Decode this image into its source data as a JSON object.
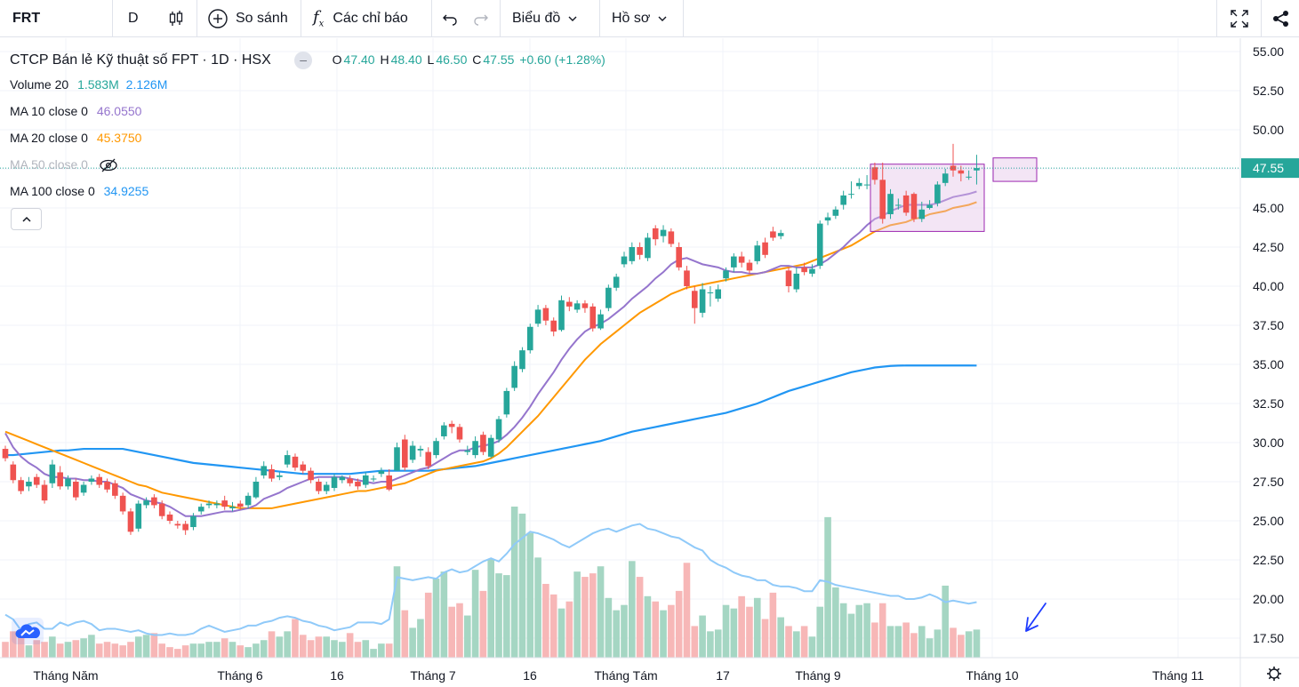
{
  "toolbar": {
    "symbol": "FRT",
    "interval": "D",
    "compare_label": "So sánh",
    "indicators_label": "Các chỉ báo",
    "chart_type_label": "Biểu đồ",
    "profile_label": "Hồ sơ"
  },
  "legend": {
    "title": "CTCP Bán lẻ Kỹ thuật số FPT · 1D · HSX",
    "open_label": "O",
    "open": "47.40",
    "high_label": "H",
    "high": "48.40",
    "low_label": "L",
    "low": "46.50",
    "close_label": "C",
    "close": "47.55",
    "change": "+0.60 (+1.28%)",
    "volume_label": "Volume 20",
    "volume_value": "1.583M",
    "volume_ma": "2.126M",
    "ma10_label": "MA 10 close 0",
    "ma10_value": "46.0550",
    "ma20_label": "MA 20 close 0",
    "ma20_value": "45.3750",
    "ma50_label": "MA 50 close 0",
    "ma100_label": "MA 100 close 0",
    "ma100_value": "34.9255"
  },
  "colors": {
    "up": "#26a69a",
    "down": "#ef5350",
    "ma10": "#9575cd",
    "ma20": "#ff9800",
    "ma100": "#2196f3",
    "vol_ma": "#90caf9",
    "vol_up": "#a5d6c3",
    "vol_down": "#f7b7b7",
    "last_price": "#26a69a"
  },
  "chart_data": {
    "type": "candlestick",
    "title": "CTCP Bán lẻ Kỹ thuật số FPT · 1D · HSX",
    "ylim": [
      16.5,
      56.5
    ],
    "y_ticks": [
      "55.00",
      "52.50",
      "50.00",
      "47.50",
      "45.00",
      "42.50",
      "40.00",
      "37.50",
      "35.00",
      "32.50",
      "30.00",
      "27.50",
      "25.00",
      "22.50",
      "20.00",
      "17.50"
    ],
    "last_price_label": "47.55",
    "x_labels": [
      "Tháng Năm",
      "Tháng 6",
      "16",
      "Tháng 7",
      "16",
      "Tháng Tám",
      "17",
      "Tháng 9",
      "Tháng 10",
      "Tháng 11"
    ],
    "candles": [
      [
        29.6,
        29.0
      ],
      [
        28.6,
        27.6
      ],
      [
        27.6,
        26.9
      ],
      [
        27.2,
        27.5
      ],
      [
        27.8,
        27.3
      ],
      [
        27.3,
        26.3
      ],
      [
        27.4,
        28.6
      ],
      [
        28.1,
        27.2
      ],
      [
        27.2,
        27.7
      ],
      [
        27.5,
        26.5
      ],
      [
        26.8,
        27.3
      ],
      [
        27.5,
        27.7
      ],
      [
        27.8,
        27.3
      ],
      [
        27.5,
        27.0
      ],
      [
        27.4,
        26.6
      ],
      [
        26.6,
        25.6
      ],
      [
        25.6,
        24.3
      ],
      [
        24.5,
        26.1
      ],
      [
        26.0,
        26.3
      ],
      [
        26.5,
        26.0
      ],
      [
        26.1,
        25.3
      ],
      [
        25.4,
        25.0
      ],
      [
        24.8,
        24.7
      ],
      [
        24.8,
        24.4
      ],
      [
        24.6,
        25.3
      ],
      [
        25.6,
        25.9
      ],
      [
        26.0,
        26.1
      ],
      [
        26.0,
        26.1
      ],
      [
        26.3,
        25.9
      ],
      [
        25.8,
        25.9
      ],
      [
        26.1,
        25.9
      ],
      [
        26.0,
        26.6
      ],
      [
        26.5,
        27.5
      ],
      [
        27.9,
        28.5
      ],
      [
        28.3,
        27.7
      ],
      [
        27.8,
        27.9
      ],
      [
        28.6,
        29.2
      ],
      [
        29.1,
        28.4
      ],
      [
        28.6,
        28.2
      ],
      [
        28.2,
        27.6
      ],
      [
        27.5,
        26.9
      ],
      [
        26.9,
        27.3
      ],
      [
        27.1,
        27.8
      ],
      [
        27.6,
        27.8
      ],
      [
        27.7,
        27.4
      ],
      [
        27.5,
        27.2
      ],
      [
        27.3,
        27.9
      ],
      [
        27.7,
        27.7
      ],
      [
        28.0,
        28.2
      ],
      [
        27.9,
        27.0
      ],
      [
        28.2,
        29.7
      ],
      [
        30.2,
        28.4
      ],
      [
        28.9,
        29.8
      ],
      [
        29.5,
        29.6
      ],
      [
        29.4,
        28.5
      ],
      [
        29.2,
        30.1
      ],
      [
        30.4,
        31.1
      ],
      [
        31.2,
        31.0
      ],
      [
        31.0,
        30.2
      ],
      [
        29.4,
        29.5
      ],
      [
        29.2,
        30.1
      ],
      [
        30.5,
        29.4
      ],
      [
        29.1,
        30.3
      ],
      [
        30.2,
        31.5
      ],
      [
        31.8,
        33.3
      ],
      [
        33.5,
        34.9
      ],
      [
        34.7,
        35.9
      ],
      [
        35.9,
        37.4
      ],
      [
        37.6,
        38.5
      ],
      [
        38.6,
        37.8
      ],
      [
        37.8,
        37.1
      ],
      [
        37.2,
        39.1
      ],
      [
        39.0,
        38.7
      ],
      [
        38.5,
        38.9
      ],
      [
        38.9,
        38.6
      ],
      [
        38.7,
        37.3
      ],
      [
        37.3,
        38.2
      ],
      [
        38.6,
        39.9
      ],
      [
        39.9,
        40.6
      ],
      [
        41.4,
        41.9
      ],
      [
        41.6,
        42.5
      ],
      [
        42.5,
        42.0
      ],
      [
        41.8,
        43.1
      ],
      [
        43.7,
        43.0
      ],
      [
        43.2,
        43.6
      ],
      [
        43.5,
        42.7
      ],
      [
        42.5,
        41.2
      ],
      [
        41.0,
        40.0
      ],
      [
        39.7,
        38.6
      ],
      [
        38.3,
        39.8
      ],
      [
        39.6,
        39.6
      ],
      [
        39.2,
        39.8
      ],
      [
        40.5,
        41.0
      ],
      [
        41.2,
        41.9
      ],
      [
        41.9,
        41.5
      ],
      [
        41.5,
        41.0
      ],
      [
        41.6,
        42.6
      ],
      [
        42.8,
        42.0
      ],
      [
        43.5,
        43.1
      ],
      [
        43.2,
        43.4
      ],
      [
        41.0,
        40.0
      ],
      [
        39.8,
        40.8
      ],
      [
        41.2,
        40.9
      ],
      [
        40.8,
        41.1
      ],
      [
        41.3,
        44.0
      ],
      [
        44.2,
        44.4
      ],
      [
        44.5,
        44.9
      ],
      [
        45.2,
        45.8
      ],
      [
        45.9,
        45.9
      ],
      [
        46.4,
        46.6
      ],
      [
        46.5,
        46.5
      ],
      [
        47.6,
        46.8
      ],
      [
        46.8,
        44.3
      ],
      [
        44.6,
        45.9
      ],
      [
        45.2,
        45.2
      ],
      [
        45.8,
        44.7
      ],
      [
        45.9,
        44.3
      ],
      [
        44.3,
        44.9
      ],
      [
        45.0,
        45.2
      ],
      [
        45.3,
        46.5
      ],
      [
        46.6,
        47.2
      ],
      [
        47.7,
        47.4
      ],
      [
        47.4,
        47.2
      ],
      [
        47.0,
        47.0
      ],
      [
        47.4,
        47.55
      ]
    ],
    "highs": [
      29.8,
      28.8,
      27.8,
      27.8,
      28.0,
      27.6,
      28.9,
      28.5,
      27.9,
      27.7,
      27.5,
      27.9,
      28.0,
      27.7,
      27.6,
      26.8,
      25.8,
      26.3,
      26.5,
      26.7,
      26.3,
      25.6,
      25.0,
      25.0,
      25.5,
      26.1,
      26.3,
      26.3,
      26.6,
      26.2,
      26.3,
      26.8,
      27.8,
      28.8,
      28.6,
      28.1,
      29.5,
      29.3,
      28.8,
      28.4,
      27.7,
      27.5,
      28.0,
      27.9,
      27.9,
      27.7,
      28.1,
      27.9,
      28.4,
      28.3,
      30.0,
      30.5,
      30.1,
      29.8,
      29.7,
      30.3,
      31.3,
      31.4,
      31.2,
      29.8,
      30.4,
      30.7,
      30.5,
      31.7,
      33.5,
      35.2,
      36.1,
      37.6,
      38.8,
      38.8,
      38.0,
      39.4,
      39.3,
      39.1,
      39.1,
      38.9,
      38.5,
      40.1,
      40.8,
      42.2,
      42.8,
      42.8,
      43.4,
      43.9,
      43.9,
      43.7,
      42.8,
      41.3,
      40.0,
      40.2,
      40.0,
      40.1,
      41.2,
      42.1,
      42.2,
      41.7,
      42.9,
      43.1,
      43.8,
      43.6,
      41.2,
      41.2,
      41.5,
      41.4,
      44.2,
      44.7,
      45.1,
      46.1,
      46.7,
      46.9,
      47.1,
      47.9,
      47.9,
      46.2,
      45.6,
      46.1,
      46.0,
      45.4,
      45.5,
      46.7,
      47.5,
      49.1,
      47.7,
      47.4,
      48.4
    ],
    "lows": [
      28.8,
      27.4,
      26.7,
      26.9,
      27.1,
      26.1,
      27.1,
      27.0,
      27.0,
      26.3,
      26.6,
      27.3,
      27.1,
      26.8,
      26.4,
      25.4,
      24.1,
      24.3,
      25.8,
      25.8,
      25.1,
      24.8,
      24.5,
      24.1,
      24.4,
      25.4,
      25.8,
      25.8,
      25.7,
      25.6,
      25.7,
      25.8,
      26.4,
      27.7,
      27.5,
      27.6,
      28.4,
      28.2,
      28.0,
      27.4,
      26.7,
      26.7,
      26.9,
      27.4,
      27.2,
      27.0,
      27.1,
      27.5,
      27.8,
      26.9,
      28.2,
      28.2,
      28.7,
      29.1,
      28.3,
      29.0,
      30.2,
      30.6,
      30.0,
      29.2,
      29.0,
      29.2,
      29.0,
      30.0,
      31.6,
      33.3,
      34.5,
      35.7,
      37.4,
      37.5,
      36.8,
      37.1,
      38.4,
      38.3,
      38.3,
      37.1,
      37.2,
      38.4,
      39.7,
      41.2,
      41.4,
      41.7,
      41.6,
      42.6,
      42.8,
      42.5,
      41.0,
      39.8,
      37.6,
      38.0,
      38.7,
      39.0,
      40.3,
      40.9,
      41.2,
      40.8,
      41.4,
      41.8,
      42.9,
      43.0,
      39.6,
      39.6,
      40.7,
      40.6,
      41.1,
      43.9,
      44.3,
      44.9,
      45.6,
      46.2,
      46.2,
      46.5,
      44.0,
      44.3,
      44.9,
      44.5,
      44.1,
      44.1,
      44.9,
      45.1,
      46.4,
      47.0,
      46.7,
      46.8,
      46.5
    ],
    "volume_values": [
      19.0,
      18.7,
      18.0,
      18.4,
      18.5,
      18.1,
      18.1,
      18.5,
      18.3,
      18.5,
      18.6,
      18.4,
      18.0,
      18.1,
      18.1,
      18.0,
      17.9,
      18.0,
      17.8,
      17.7,
      17.7,
      17.8,
      17.7,
      17.7,
      17.8,
      18.1,
      18.3,
      18.1,
      17.9,
      18.0,
      18.1,
      18.3,
      18.3,
      18.5,
      18.6,
      18.8,
      18.9,
      18.8,
      18.6,
      18.5,
      18.3,
      18.2,
      18.0,
      18.1,
      18.2,
      18.5,
      18.5,
      18.5,
      18.4,
      18.7,
      21.4,
      21.3,
      21.2,
      21.3,
      21.4,
      21.3,
      21.7,
      21.9,
      21.7,
      21.8,
      22.1,
      22.4,
      22.6,
      22.4,
      22.9,
      23.5,
      23.9,
      24.3,
      24.2,
      24.0,
      23.8,
      23.5,
      23.3,
      23.6,
      23.9,
      24.2,
      24.4,
      24.5,
      24.3,
      24.5,
      24.7,
      24.8,
      24.5,
      24.4,
      24.2,
      24.0,
      23.9,
      23.6,
      23.3,
      23.1,
      22.5,
      22.2,
      22.0,
      21.7,
      21.5,
      21.4,
      21.2,
      21.2,
      20.9,
      20.8,
      20.8,
      20.7,
      20.5,
      20.5,
      21.2,
      21.1,
      20.9,
      20.8,
      20.7,
      20.6,
      20.5,
      20.4,
      20.3,
      20.2,
      20.2,
      20.0,
      20.0,
      20.1,
      20.3,
      20.1,
      19.8,
      19.9,
      19.8,
      19.7,
      19.8
    ],
    "volume_ma_y": "price-scale",
    "ma10": [
      30.6,
      29.7,
      29.1,
      28.7,
      28.4,
      28.0,
      27.8,
      27.8,
      27.7,
      27.7,
      27.6,
      27.6,
      27.5,
      27.5,
      27.3,
      27.1,
      26.7,
      26.5,
      26.3,
      26.2,
      26.1,
      25.9,
      25.6,
      25.3,
      25.3,
      25.3,
      25.4,
      25.5,
      25.6,
      25.6,
      25.7,
      25.8,
      26.0,
      26.4,
      26.6,
      26.8,
      27.1,
      27.3,
      27.5,
      27.7,
      27.8,
      27.8,
      27.8,
      27.8,
      27.7,
      27.6,
      27.5,
      27.4,
      27.5,
      27.5,
      27.7,
      27.9,
      28.1,
      28.3,
      28.4,
      28.7,
      29.0,
      29.3,
      29.5,
      29.5,
      29.7,
      29.8,
      29.9,
      30.1,
      30.5,
      31.0,
      31.6,
      32.3,
      33.1,
      33.8,
      34.5,
      35.3,
      36.0,
      36.6,
      37.1,
      37.4,
      37.6,
      37.9,
      38.3,
      38.7,
      39.2,
      39.6,
      40.0,
      40.5,
      40.9,
      41.4,
      41.7,
      41.8,
      41.6,
      41.4,
      41.3,
      41.2,
      41.0,
      40.9,
      40.9,
      40.8,
      40.8,
      40.9,
      41.1,
      41.3,
      41.3,
      41.2,
      41.2,
      41.2,
      41.4,
      41.7,
      42.1,
      42.5,
      43.0,
      43.4,
      43.9,
      44.3,
      44.5,
      44.8,
      45.0,
      45.2,
      45.2,
      45.2,
      45.2,
      45.3,
      45.5,
      45.7,
      45.8,
      45.9,
      46.05
    ],
    "ma20": [
      30.7,
      30.5,
      30.3,
      30.1,
      29.9,
      29.7,
      29.5,
      29.3,
      29.1,
      28.9,
      28.7,
      28.5,
      28.3,
      28.1,
      27.9,
      27.7,
      27.5,
      27.3,
      27.2,
      27.0,
      26.8,
      26.7,
      26.6,
      26.5,
      26.4,
      26.3,
      26.2,
      26.1,
      26.0,
      25.9,
      25.8,
      25.8,
      25.8,
      25.8,
      25.8,
      25.9,
      26.0,
      26.1,
      26.2,
      26.3,
      26.4,
      26.5,
      26.6,
      26.7,
      26.8,
      26.9,
      26.9,
      27.0,
      27.1,
      27.2,
      27.3,
      27.4,
      27.6,
      27.8,
      28.0,
      28.2,
      28.3,
      28.4,
      28.5,
      28.6,
      28.7,
      28.8,
      29.0,
      29.3,
      29.7,
      30.2,
      30.7,
      31.2,
      31.7,
      32.3,
      32.9,
      33.5,
      34.1,
      34.7,
      35.3,
      35.8,
      36.3,
      36.7,
      37.1,
      37.5,
      37.9,
      38.3,
      38.6,
      38.9,
      39.2,
      39.5,
      39.7,
      39.9,
      40.0,
      40.1,
      40.2,
      40.3,
      40.4,
      40.5,
      40.6,
      40.7,
      40.8,
      40.9,
      41.0,
      41.1,
      41.2,
      41.3,
      41.4,
      41.6,
      41.8,
      42.0,
      42.2,
      42.4,
      42.6,
      42.9,
      43.2,
      43.5,
      43.7,
      43.9,
      44.0,
      44.1,
      44.3,
      44.4,
      44.6,
      44.7,
      44.8,
      45.0,
      45.1,
      45.2,
      45.375
    ],
    "ma100": [
      29.2,
      29.2,
      29.25,
      29.3,
      29.35,
      29.4,
      29.45,
      29.5,
      29.5,
      29.55,
      29.6,
      29.6,
      29.6,
      29.6,
      29.6,
      29.6,
      29.5,
      29.4,
      29.3,
      29.2,
      29.1,
      29.0,
      28.9,
      28.8,
      28.7,
      28.65,
      28.6,
      28.55,
      28.5,
      28.45,
      28.4,
      28.35,
      28.3,
      28.25,
      28.2,
      28.15,
      28.1,
      28.05,
      28.0,
      28.0,
      28.0,
      28.0,
      28.0,
      28.0,
      28.0,
      28.05,
      28.1,
      28.15,
      28.2,
      28.2,
      28.2,
      28.2,
      28.2,
      28.2,
      28.2,
      28.25,
      28.3,
      28.35,
      28.4,
      28.45,
      28.5,
      28.6,
      28.7,
      28.8,
      28.9,
      29.0,
      29.1,
      29.2,
      29.3,
      29.4,
      29.5,
      29.6,
      29.7,
      29.8,
      29.9,
      30.0,
      30.1,
      30.25,
      30.4,
      30.55,
      30.7,
      30.8,
      30.9,
      31.0,
      31.1,
      31.2,
      31.3,
      31.4,
      31.5,
      31.6,
      31.7,
      31.8,
      31.9,
      32.05,
      32.2,
      32.35,
      32.5,
      32.7,
      32.9,
      33.1,
      33.3,
      33.45,
      33.6,
      33.75,
      33.9,
      34.05,
      34.2,
      34.35,
      34.5,
      34.6,
      34.7,
      34.8,
      34.85,
      34.9,
      34.92,
      34.93,
      34.93,
      34.93,
      34.93,
      34.93,
      34.93,
      34.93,
      34.93,
      34.93,
      34.9255
    ],
    "volumes": [
      0.9,
      1.5,
      1.4,
      0.7,
      1.0,
      0.9,
      1.2,
      0.8,
      0.9,
      1.0,
      1.1,
      1.3,
      0.8,
      0.9,
      0.8,
      0.7,
      0.9,
      1.2,
      1.3,
      1.4,
      0.8,
      0.6,
      0.5,
      0.7,
      0.8,
      0.8,
      0.9,
      0.9,
      1.1,
      0.9,
      0.7,
      0.6,
      0.8,
      1.0,
      1.5,
      1.2,
      1.5,
      2.2,
      1.3,
      1.0,
      1.2,
      1.2,
      1.0,
      0.9,
      1.4,
      0.9,
      1.0,
      0.5,
      0.8,
      0.8,
      5.2,
      2.7,
      1.7,
      2.2,
      3.7,
      4.5,
      4.9,
      2.9,
      3.1,
      2.4,
      5.0,
      3.8,
      5.6,
      4.8,
      4.7,
      8.6,
      8.2,
      7.1,
      5.7,
      4.2,
      3.6,
      2.8,
      3.2,
      4.9,
      4.6,
      4.8,
      5.2,
      3.4,
      2.7,
      3.0,
      5.5,
      4.6,
      3.5,
      3.2,
      2.7,
      3.0,
      3.8,
      5.4,
      1.8,
      2.4,
      1.5,
      1.6,
      3.0,
      2.8,
      3.5,
      2.9,
      3.4,
      2.2,
      3.7,
      2.3,
      1.8,
      1.5,
      1.8,
      1.2,
      2.9,
      8.0,
      4.0,
      3.1,
      2.5,
      3.0,
      3.1,
      2.0,
      3.1,
      1.8,
      1.8,
      2.0,
      1.4,
      1.8,
      1.1,
      1.6,
      4.1,
      1.7,
      1.3,
      1.5,
      1.6
    ]
  },
  "annotations": {
    "arrow": "↙"
  }
}
